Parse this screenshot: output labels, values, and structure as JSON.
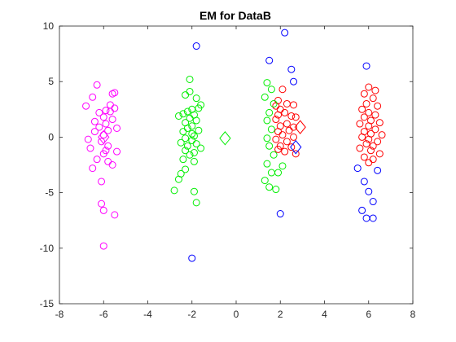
{
  "chart_data": {
    "type": "scatter",
    "title": "EM for DataB",
    "xlabel": "",
    "ylabel": "",
    "xlim": [
      -8,
      8
    ],
    "ylim": [
      -15,
      10
    ],
    "xticks": [
      -8,
      -6,
      -4,
      -2,
      0,
      2,
      4,
      6,
      8
    ],
    "yticks": [
      -15,
      -10,
      -5,
      0,
      5,
      10
    ],
    "grid": false,
    "legend": "none",
    "series": [
      {
        "color": "#ff00ff",
        "marker": "circle",
        "points": [
          [
            -6.3,
            4.7
          ],
          [
            -5.6,
            3.9
          ],
          [
            -5.5,
            4.0
          ],
          [
            -6.5,
            3.6
          ],
          [
            -6.8,
            2.8
          ],
          [
            -5.7,
            2.9
          ],
          [
            -5.5,
            2.6
          ],
          [
            -6.2,
            2.2
          ],
          [
            -5.9,
            2.4
          ],
          [
            -5.7,
            2.3
          ],
          [
            -6.0,
            1.8
          ],
          [
            -6.4,
            1.4
          ],
          [
            -5.9,
            1.2
          ],
          [
            -5.6,
            1.6
          ],
          [
            -6.2,
            0.9
          ],
          [
            -5.8,
            0.6
          ],
          [
            -5.4,
            0.8
          ],
          [
            -6.4,
            0.5
          ],
          [
            -6.0,
            0.2
          ],
          [
            -6.7,
            -0.2
          ],
          [
            -6.1,
            -0.4
          ],
          [
            -5.8,
            -0.8
          ],
          [
            -6.6,
            -1.0
          ],
          [
            -5.9,
            -1.2
          ],
          [
            -5.4,
            -1.3
          ],
          [
            -6.0,
            -1.5
          ],
          [
            -6.3,
            -2.0
          ],
          [
            -5.8,
            -2.2
          ],
          [
            -6.5,
            -2.8
          ],
          [
            -5.6,
            -2.5
          ],
          [
            -6.1,
            -4.0
          ],
          [
            -6.1,
            -6.0
          ],
          [
            -6.0,
            -6.6
          ],
          [
            -5.5,
            -7.0
          ],
          [
            -6.0,
            -9.8
          ]
        ]
      },
      {
        "color": "#00ee00",
        "marker": "circle",
        "points": [
          [
            -2.1,
            5.2
          ],
          [
            -2.1,
            4.1
          ],
          [
            -2.3,
            3.8
          ],
          [
            -1.8,
            3.5
          ],
          [
            -1.6,
            2.9
          ],
          [
            -1.7,
            2.6
          ],
          [
            -2.0,
            2.5
          ],
          [
            -2.2,
            2.3
          ],
          [
            -1.9,
            2.0
          ],
          [
            -2.4,
            2.1
          ],
          [
            -2.1,
            1.7
          ],
          [
            -2.6,
            1.9
          ],
          [
            -1.8,
            1.5
          ],
          [
            -2.3,
            1.3
          ],
          [
            -2.0,
            1.0
          ],
          [
            -2.2,
            0.8
          ],
          [
            -1.7,
            0.6
          ],
          [
            -2.4,
            0.5
          ],
          [
            -2.0,
            0.3
          ],
          [
            -1.9,
            0.1
          ],
          [
            -2.3,
            -0.1
          ],
          [
            -2.0,
            -0.3
          ],
          [
            -2.5,
            -0.5
          ],
          [
            -1.8,
            -0.6
          ],
          [
            -2.2,
            -0.8
          ],
          [
            -1.6,
            -1.0
          ],
          [
            -2.3,
            -1.2
          ],
          [
            -1.9,
            -1.4
          ],
          [
            -2.1,
            -1.6
          ],
          [
            -2.4,
            -2.0
          ],
          [
            -1.9,
            -2.2
          ],
          [
            -2.3,
            -2.9
          ],
          [
            -2.5,
            -3.3
          ],
          [
            -2.6,
            -3.8
          ],
          [
            -1.9,
            -4.9
          ],
          [
            -2.8,
            -4.8
          ],
          [
            -1.8,
            -5.9
          ]
        ]
      },
      {
        "color": "#ff0000",
        "marker": "circle",
        "points": [
          [
            2.1,
            4.3
          ],
          [
            1.9,
            3.3
          ],
          [
            2.3,
            3.0
          ],
          [
            1.8,
            2.8
          ],
          [
            2.6,
            2.9
          ],
          [
            2.0,
            2.5
          ],
          [
            2.2,
            2.2
          ],
          [
            1.9,
            2.0
          ],
          [
            2.5,
            1.9
          ],
          [
            2.7,
            1.8
          ],
          [
            1.8,
            1.6
          ],
          [
            2.3,
            1.2
          ],
          [
            2.0,
            1.0
          ],
          [
            2.6,
            0.9
          ],
          [
            1.9,
            0.5
          ],
          [
            2.4,
            0.6
          ],
          [
            2.1,
            0.2
          ],
          [
            2.6,
            0.0
          ],
          [
            1.8,
            -0.2
          ],
          [
            2.3,
            -0.4
          ],
          [
            2.0,
            -0.8
          ],
          [
            2.5,
            -0.9
          ],
          [
            1.9,
            -1.1
          ],
          [
            2.2,
            -1.3
          ],
          [
            2.7,
            -1.5
          ],
          [
            6.0,
            4.5
          ],
          [
            6.3,
            4.2
          ],
          [
            5.8,
            3.9
          ],
          [
            6.2,
            3.5
          ],
          [
            5.9,
            3.0
          ],
          [
            6.4,
            2.8
          ],
          [
            5.7,
            2.5
          ],
          [
            6.0,
            2.2
          ],
          [
            6.3,
            2.0
          ],
          [
            5.8,
            1.8
          ],
          [
            6.1,
            1.5
          ],
          [
            6.5,
            1.3
          ],
          [
            5.6,
            1.2
          ],
          [
            6.0,
            1.0
          ],
          [
            6.3,
            0.7
          ],
          [
            5.8,
            0.5
          ],
          [
            6.1,
            0.3
          ],
          [
            6.6,
            0.2
          ],
          [
            5.7,
            0.0
          ],
          [
            6.0,
            -0.2
          ],
          [
            6.4,
            -0.4
          ],
          [
            5.9,
            -0.6
          ],
          [
            6.2,
            -0.8
          ],
          [
            5.6,
            -1.0
          ],
          [
            6.1,
            -1.2
          ],
          [
            6.5,
            -1.5
          ],
          [
            5.8,
            -1.8
          ],
          [
            6.2,
            -2.0
          ],
          [
            6.0,
            -2.3
          ]
        ]
      },
      {
        "color": "#0000ff",
        "marker": "circle",
        "points": [
          [
            -1.8,
            8.2
          ],
          [
            2.2,
            9.4
          ],
          [
            1.5,
            6.9
          ],
          [
            2.5,
            6.1
          ],
          [
            2.6,
            5.0
          ],
          [
            2.0,
            -6.9
          ],
          [
            -2.0,
            -10.9
          ],
          [
            5.9,
            6.4
          ],
          [
            5.5,
            -2.8
          ],
          [
            6.4,
            -3.0
          ],
          [
            5.8,
            -4.0
          ],
          [
            6.0,
            -4.9
          ],
          [
            6.2,
            -5.8
          ],
          [
            5.7,
            -6.6
          ],
          [
            5.9,
            -7.3
          ],
          [
            6.2,
            -7.3
          ]
        ]
      },
      {
        "color": "#00ee00",
        "marker": "circle",
        "points": [
          [
            1.4,
            4.9
          ],
          [
            1.6,
            4.3
          ],
          [
            1.3,
            3.6
          ],
          [
            1.7,
            3.0
          ],
          [
            1.5,
            2.2
          ],
          [
            1.4,
            1.5
          ],
          [
            1.6,
            0.7
          ],
          [
            1.4,
            -0.1
          ],
          [
            1.5,
            -0.8
          ],
          [
            1.7,
            -1.6
          ],
          [
            1.4,
            -2.4
          ],
          [
            1.6,
            -3.2
          ],
          [
            1.3,
            -3.9
          ],
          [
            1.5,
            -4.5
          ],
          [
            1.8,
            -4.7
          ],
          [
            1.9,
            -3.2
          ],
          [
            2.1,
            -2.6
          ]
        ]
      }
    ],
    "centroids": [
      {
        "color": "#ff00ff",
        "x": -6.0,
        "y": 0.0
      },
      {
        "color": "#00ee00",
        "x": -0.5,
        "y": -0.1
      },
      {
        "color": "#ff0000",
        "x": 2.9,
        "y": 0.9
      },
      {
        "color": "#0000ff",
        "x": 2.7,
        "y": -0.9
      }
    ]
  }
}
